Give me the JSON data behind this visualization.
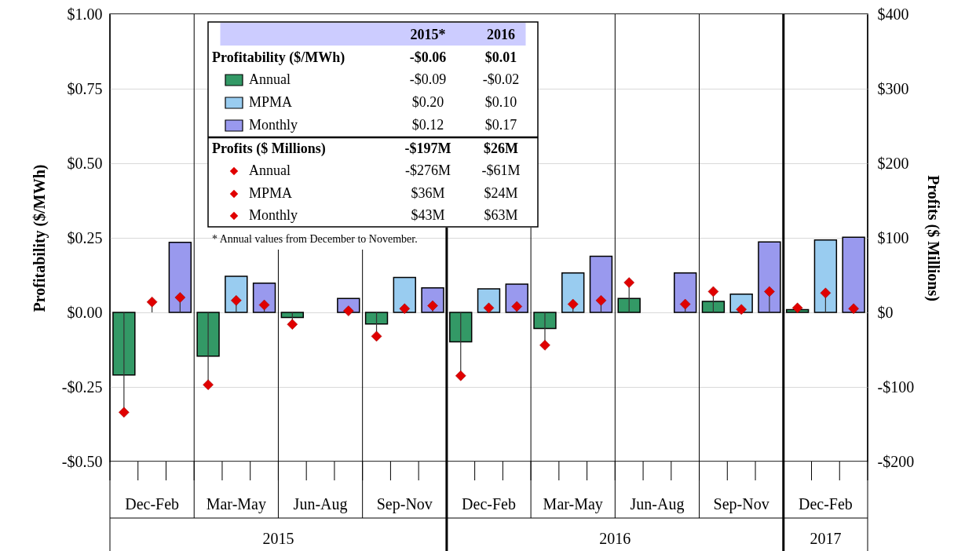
{
  "chart_data": {
    "type": "bar",
    "ylabel": "Profitability ($/MWh)",
    "y2label": "Profits ($ Millions)",
    "categories": [
      "Dec-Feb",
      "Mar-May",
      "Jun-Aug",
      "Sep-Nov",
      "Dec-Feb",
      "Mar-May",
      "Jun-Aug",
      "Sep-Nov",
      "Dec-Feb"
    ],
    "series": [
      {
        "name": "Annual",
        "color": "#339966",
        "values": [
          -0.21,
          -0.147,
          -0.017,
          -0.039,
          -0.099,
          -0.054,
          0.047,
          0.037,
          0.009
        ]
      },
      {
        "name": "MPMA",
        "color": "#99ccf0",
        "values": [
          null,
          0.121,
          null,
          0.117,
          0.079,
          0.132,
          null,
          0.061,
          0.243
        ]
      },
      {
        "name": "Monthly",
        "color": "#9999ee",
        "values": [
          0.235,
          0.098,
          0.047,
          0.082,
          0.095,
          0.188,
          0.132,
          0.236,
          0.252
        ]
      },
      {
        "name": "Annual",
        "type": "lollipop",
        "axis": "y2",
        "marker": "diamond",
        "color": "#e00000",
        "values": [
          -134,
          -97,
          -16,
          -32,
          -85,
          -44,
          40,
          28,
          6
        ]
      },
      {
        "name": "MPMA",
        "type": "lollipop",
        "axis": "y2",
        "marker": "diamond",
        "color": "#e00000",
        "values": [
          14,
          16,
          null,
          5,
          6,
          11,
          null,
          4,
          26
        ]
      },
      {
        "name": "Monthly",
        "type": "lollipop",
        "axis": "y2",
        "marker": "diamond",
        "color": "#e00000",
        "values": [
          20,
          10,
          2,
          9,
          8,
          16,
          11,
          28,
          5
        ]
      }
    ],
    "ylim": [
      -0.5,
      1.0
    ],
    "yticks": [
      {
        "value": -0.5,
        "label": "-$0.50"
      },
      {
        "value": -0.25,
        "label": "-$0.25"
      },
      {
        "value": 0,
        "label": "$0.00"
      },
      {
        "value": 0.25,
        "label": "$0.25"
      },
      {
        "value": 0.5,
        "label": "$0.50"
      },
      {
        "value": 0.75,
        "label": "$0.75"
      },
      {
        "value": 1.0,
        "label": "$1.00"
      }
    ],
    "y2lim": [
      -200,
      400
    ],
    "y2ticks": [
      {
        "value": -200,
        "label": "-$200"
      },
      {
        "value": -100,
        "label": "-$100"
      },
      {
        "value": 0,
        "label": "$0"
      },
      {
        "value": 100,
        "label": "$100"
      },
      {
        "value": 200,
        "label": "$200"
      },
      {
        "value": 300,
        "label": "$300"
      },
      {
        "value": 400,
        "label": "$400"
      }
    ],
    "grid": "y",
    "legend": "top",
    "annotations": [
      "2015",
      "2016",
      "2017",
      "2015*",
      "2016",
      "Profitability ($/MWh)",
      "-$0.06",
      "$0.01",
      "-$0.09",
      "-$0.02",
      "$0.20",
      "$0.10",
      "$0.12",
      "$0.17",
      "Profits ($ Millions)",
      "-$197M",
      "$26M",
      "-$276M",
      "-$61M",
      "$36M",
      "$24M",
      "$43M",
      "$63M",
      "* Annual values from December to November."
    ]
  }
}
